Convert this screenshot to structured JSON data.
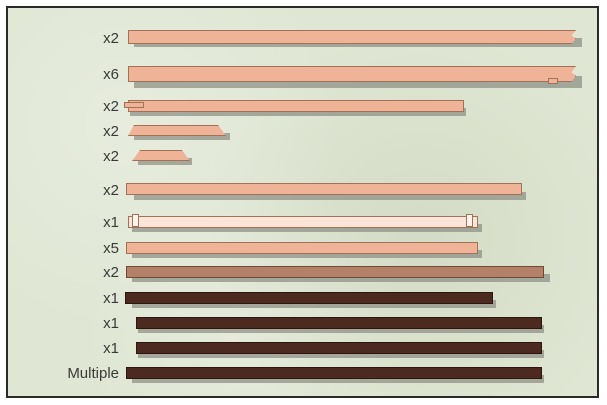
{
  "diagram": {
    "colors": {
      "background": "#dfe6d3",
      "board_light": "#efb497",
      "board_medium": "#b48068",
      "board_dark": "#4d2a20",
      "board_pale": "#fbe5d8",
      "shadow": "#8f9285"
    },
    "rows": [
      {
        "qty": "x2",
        "style": "light",
        "profile": "notched-right"
      },
      {
        "qty": "x6",
        "style": "light",
        "profile": "notched-right-tab"
      },
      {
        "qty": "x2",
        "style": "light",
        "profile": "tongue-left"
      },
      {
        "qty": "x2",
        "style": "light",
        "profile": "tapered"
      },
      {
        "qty": "x2",
        "style": "light",
        "profile": "tapered"
      },
      {
        "qty": "x2",
        "style": "light",
        "profile": "flat"
      },
      {
        "qty": "x1",
        "style": "pale",
        "profile": "slotted-ends"
      },
      {
        "qty": "x5",
        "style": "light",
        "profile": "flat"
      },
      {
        "qty": "x2",
        "style": "medium",
        "profile": "flat"
      },
      {
        "qty": "x1",
        "style": "dark",
        "profile": "flat"
      },
      {
        "qty": "x1",
        "style": "dark",
        "profile": "flat"
      },
      {
        "qty": "x1",
        "style": "dark",
        "profile": "flat"
      },
      {
        "qty": "Multiple",
        "style": "dark",
        "profile": "flat"
      }
    ]
  }
}
